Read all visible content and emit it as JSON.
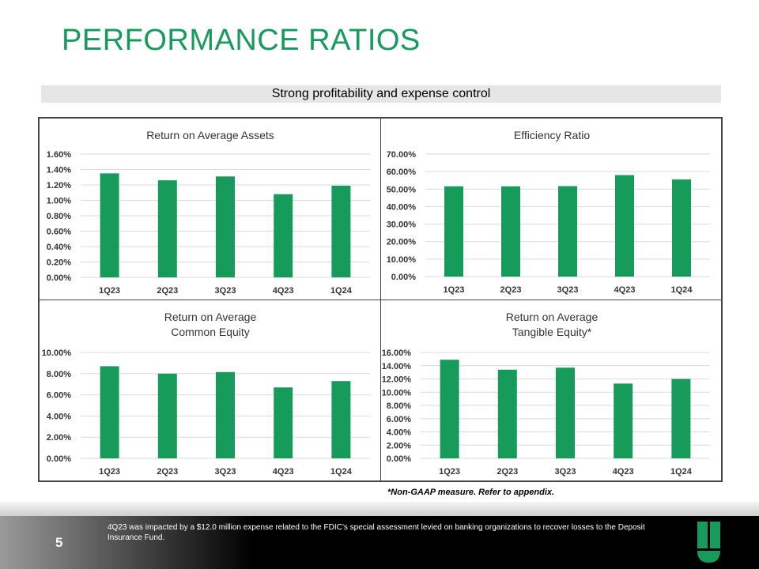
{
  "title": "PERFORMANCE RATIOS",
  "banner": "Strong profitability and expense control",
  "note": "*Non-GAAP measure.  Refer to appendix.",
  "footer": {
    "page": "5",
    "text": "4Q23 was impacted by a $12.0 million expense related to the FDIC’s special assessment levied on banking organizations to recover losses to the Deposit Insurance Fund."
  },
  "colors": {
    "bar": "#169b5b",
    "title": "#169b5b"
  },
  "chart_data": [
    {
      "type": "bar",
      "title": [
        "Return on Average Assets"
      ],
      "categories": [
        "1Q23",
        "2Q23",
        "3Q23",
        "4Q23",
        "1Q24"
      ],
      "values": [
        1.35,
        1.26,
        1.31,
        1.08,
        1.19
      ],
      "ylim": [
        0,
        1.6
      ],
      "step": 0.2,
      "decimals": 2,
      "ylabel": "",
      "xlabel": ""
    },
    {
      "type": "bar",
      "title": [
        "Efficiency Ratio"
      ],
      "categories": [
        "1Q23",
        "2Q23",
        "3Q23",
        "4Q23",
        "1Q24"
      ],
      "values": [
        51.6,
        51.6,
        51.7,
        58.0,
        55.5
      ],
      "ylim": [
        0,
        70
      ],
      "step": 10,
      "decimals": 2,
      "ylabel": "",
      "xlabel": ""
    },
    {
      "type": "bar",
      "title": [
        "Return on Average",
        "Common Equity"
      ],
      "categories": [
        "1Q23",
        "2Q23",
        "3Q23",
        "4Q23",
        "1Q24"
      ],
      "values": [
        8.7,
        8.0,
        8.15,
        6.7,
        7.3
      ],
      "ylim": [
        0,
        10
      ],
      "step": 2,
      "decimals": 2,
      "ylabel": "",
      "xlabel": ""
    },
    {
      "type": "bar",
      "title": [
        "Return on Average",
        "Tangible Equity*"
      ],
      "categories": [
        "1Q23",
        "2Q23",
        "3Q23",
        "4Q23",
        "1Q24"
      ],
      "values": [
        14.9,
        13.4,
        13.7,
        11.3,
        12.0
      ],
      "ylim": [
        0,
        16
      ],
      "step": 2,
      "decimals": 2,
      "ylabel": "",
      "xlabel": ""
    }
  ]
}
